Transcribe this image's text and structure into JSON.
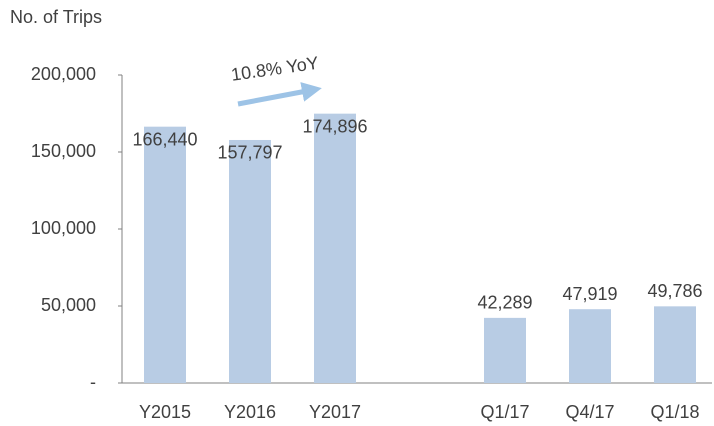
{
  "chart_data": {
    "type": "bar",
    "y_axis_label": "No. of Trips",
    "annotation": "10.8% YoY",
    "categories": [
      "Y2015",
      "Y2016",
      "Y2017",
      null,
      "Q1/17",
      "Q4/17",
      "Q1/18"
    ],
    "values": [
      166440,
      157797,
      174896,
      null,
      42289,
      47919,
      49786
    ],
    "value_labels": [
      "166,440",
      "157,797",
      "174,896",
      null,
      "42,289",
      "47,919",
      "49,786"
    ],
    "color": "#b8cce4",
    "ylim": [
      0,
      200000
    ],
    "yticks": [
      {
        "value": 0,
        "label": "-"
      },
      {
        "value": 50000,
        "label": "50,000"
      },
      {
        "value": 100000,
        "label": "100,000"
      },
      {
        "value": 150000,
        "label": "150,000"
      },
      {
        "value": 200000,
        "label": "200,000"
      }
    ],
    "grid": false
  }
}
